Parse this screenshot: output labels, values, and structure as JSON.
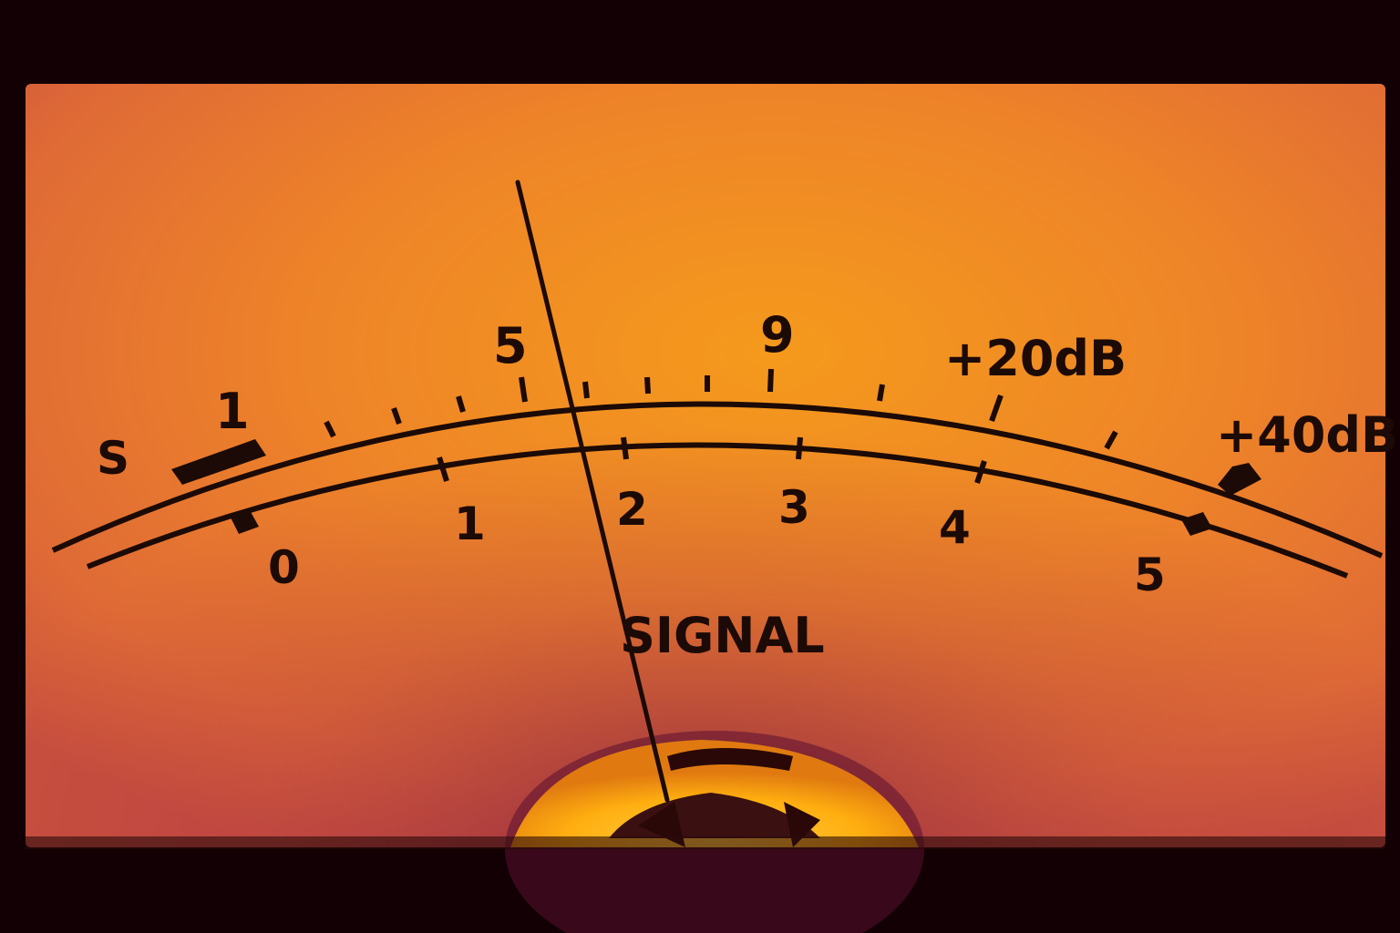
{
  "meter": {
    "upper_scale_prefix": "S",
    "upper_scale_labels": [
      "1",
      "5",
      "9",
      "+20dB",
      "+40dB"
    ],
    "lower_scale_labels": [
      "0",
      "1",
      "2",
      "3",
      "4",
      "5"
    ],
    "caption": "SIGNAL",
    "colors": {
      "bezel": "#120004",
      "face_center": "#f08a1e",
      "face_edge": "#d65a3a",
      "ink": "#1c0a06",
      "lamp": "#ffb000"
    }
  }
}
